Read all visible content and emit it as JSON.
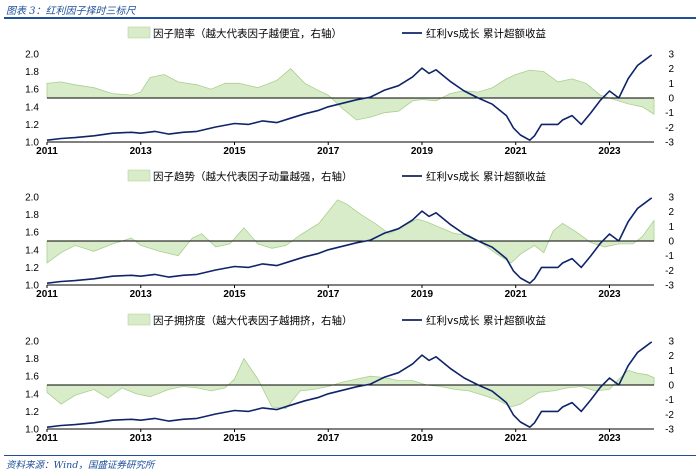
{
  "header": {
    "title": "图表 3：红利因子择时三标尺"
  },
  "footer": {
    "source": "资料来源：Wind，国盛证券研究所"
  },
  "colors": {
    "line": "#0f2469",
    "area_fill": "#d9ecc9",
    "area_stroke": "#a9d08e",
    "rule": "#1f4e9a"
  },
  "chart_data": [
    {
      "type": "line+area",
      "legend": [
        {
          "name": "因子赔率（越大代表因子越便宜，右轴）",
          "kind": "area"
        },
        {
          "name": "红利vs成长 累计超额收益",
          "kind": "line"
        }
      ],
      "left_axis": {
        "ticks": [
          "1.0",
          "1.2",
          "1.4",
          "1.6",
          "1.8",
          "2.0"
        ],
        "ylim": [
          1.0,
          2.0
        ]
      },
      "right_axis": {
        "ticks": [
          "-3",
          "-2",
          "-1",
          "0",
          "1",
          "2",
          "3"
        ],
        "ylim": [
          -3,
          3
        ]
      },
      "x_ticks": [
        "2011",
        "2013",
        "2015",
        "2017",
        "2019",
        "2021",
        "2023"
      ],
      "xlim": [
        2011.0,
        2023.95
      ],
      "line": [
        [
          2011.0,
          1.02
        ],
        [
          2011.3,
          1.04
        ],
        [
          2011.6,
          1.05
        ],
        [
          2012.0,
          1.07
        ],
        [
          2012.4,
          1.1
        ],
        [
          2012.8,
          1.11
        ],
        [
          2013.0,
          1.1
        ],
        [
          2013.3,
          1.12
        ],
        [
          2013.6,
          1.09
        ],
        [
          2013.9,
          1.11
        ],
        [
          2014.2,
          1.12
        ],
        [
          2014.6,
          1.17
        ],
        [
          2015.0,
          1.21
        ],
        [
          2015.3,
          1.2
        ],
        [
          2015.6,
          1.24
        ],
        [
          2015.9,
          1.22
        ],
        [
          2016.2,
          1.27
        ],
        [
          2016.5,
          1.32
        ],
        [
          2016.8,
          1.36
        ],
        [
          2017.0,
          1.4
        ],
        [
          2017.3,
          1.44
        ],
        [
          2017.6,
          1.48
        ],
        [
          2017.9,
          1.51
        ],
        [
          2018.2,
          1.59
        ],
        [
          2018.5,
          1.64
        ],
        [
          2018.8,
          1.74
        ],
        [
          2019.0,
          1.84
        ],
        [
          2019.15,
          1.78
        ],
        [
          2019.3,
          1.82
        ],
        [
          2019.6,
          1.69
        ],
        [
          2019.9,
          1.58
        ],
        [
          2020.2,
          1.5
        ],
        [
          2020.5,
          1.43
        ],
        [
          2020.8,
          1.3
        ],
        [
          2020.95,
          1.16
        ],
        [
          2021.1,
          1.08
        ],
        [
          2021.3,
          1.02
        ],
        [
          2021.4,
          1.07
        ],
        [
          2021.55,
          1.2
        ],
        [
          2021.7,
          1.2
        ],
        [
          2021.9,
          1.2
        ],
        [
          2022.0,
          1.25
        ],
        [
          2022.2,
          1.3
        ],
        [
          2022.4,
          1.2
        ],
        [
          2022.6,
          1.33
        ],
        [
          2022.8,
          1.47
        ],
        [
          2023.0,
          1.58
        ],
        [
          2023.2,
          1.5
        ],
        [
          2023.4,
          1.72
        ],
        [
          2023.6,
          1.87
        ],
        [
          2023.75,
          1.93
        ],
        [
          2023.9,
          1.99
        ]
      ],
      "area": [
        [
          2011.0,
          1.0
        ],
        [
          2011.3,
          1.1
        ],
        [
          2011.6,
          0.9
        ],
        [
          2012.0,
          0.7
        ],
        [
          2012.4,
          0.3
        ],
        [
          2012.8,
          0.2
        ],
        [
          2013.0,
          0.4
        ],
        [
          2013.2,
          1.4
        ],
        [
          2013.5,
          1.6
        ],
        [
          2013.8,
          1.1
        ],
        [
          2014.2,
          0.9
        ],
        [
          2014.5,
          0.6
        ],
        [
          2014.8,
          1.0
        ],
        [
          2015.1,
          1.0
        ],
        [
          2015.5,
          0.7
        ],
        [
          2015.9,
          1.2
        ],
        [
          2016.2,
          2.0
        ],
        [
          2016.5,
          1.0
        ],
        [
          2016.8,
          0.5
        ],
        [
          2017.0,
          0.2
        ],
        [
          2017.3,
          -0.7
        ],
        [
          2017.6,
          -1.5
        ],
        [
          2017.9,
          -1.3
        ],
        [
          2018.2,
          -1.0
        ],
        [
          2018.5,
          -0.9
        ],
        [
          2018.8,
          -0.2
        ],
        [
          2019.0,
          -0.1
        ],
        [
          2019.3,
          -0.2
        ],
        [
          2019.6,
          0.3
        ],
        [
          2019.9,
          0.5
        ],
        [
          2020.2,
          0.4
        ],
        [
          2020.5,
          0.7
        ],
        [
          2020.8,
          1.3
        ],
        [
          2021.0,
          1.6
        ],
        [
          2021.3,
          1.9
        ],
        [
          2021.6,
          1.8
        ],
        [
          2021.9,
          1.1
        ],
        [
          2022.2,
          1.3
        ],
        [
          2022.5,
          1.0
        ],
        [
          2022.8,
          0.2
        ],
        [
          2023.1,
          -0.1
        ],
        [
          2023.4,
          -0.4
        ],
        [
          2023.7,
          -0.6
        ],
        [
          2023.95,
          -1.1
        ]
      ]
    },
    {
      "type": "line+area",
      "legend": [
        {
          "name": "因子趋势（越大代表因子动量越强，右轴）",
          "kind": "area"
        },
        {
          "name": "红利vs成长 累计超额收益",
          "kind": "line"
        }
      ],
      "left_axis": {
        "ticks": [
          "1.0",
          "1.2",
          "1.4",
          "1.6",
          "1.8",
          "2.0"
        ],
        "ylim": [
          1.0,
          2.0
        ]
      },
      "right_axis": {
        "ticks": [
          "-3",
          "-2",
          "-1",
          "0",
          "1",
          "2",
          "3"
        ],
        "ylim": [
          -3,
          3
        ]
      },
      "x_ticks": [
        "2011",
        "2013",
        "2015",
        "2017",
        "2019",
        "2021",
        "2023"
      ],
      "xlim": [
        2011.0,
        2023.95
      ],
      "line": [
        [
          2011.0,
          1.02
        ],
        [
          2011.3,
          1.04
        ],
        [
          2011.6,
          1.05
        ],
        [
          2012.0,
          1.07
        ],
        [
          2012.4,
          1.1
        ],
        [
          2012.8,
          1.11
        ],
        [
          2013.0,
          1.1
        ],
        [
          2013.3,
          1.12
        ],
        [
          2013.6,
          1.09
        ],
        [
          2013.9,
          1.11
        ],
        [
          2014.2,
          1.12
        ],
        [
          2014.6,
          1.17
        ],
        [
          2015.0,
          1.21
        ],
        [
          2015.3,
          1.2
        ],
        [
          2015.6,
          1.24
        ],
        [
          2015.9,
          1.22
        ],
        [
          2016.2,
          1.27
        ],
        [
          2016.5,
          1.32
        ],
        [
          2016.8,
          1.36
        ],
        [
          2017.0,
          1.4
        ],
        [
          2017.3,
          1.44
        ],
        [
          2017.6,
          1.48
        ],
        [
          2017.9,
          1.51
        ],
        [
          2018.2,
          1.59
        ],
        [
          2018.5,
          1.64
        ],
        [
          2018.8,
          1.74
        ],
        [
          2019.0,
          1.84
        ],
        [
          2019.15,
          1.78
        ],
        [
          2019.3,
          1.82
        ],
        [
          2019.6,
          1.69
        ],
        [
          2019.9,
          1.58
        ],
        [
          2020.2,
          1.5
        ],
        [
          2020.5,
          1.43
        ],
        [
          2020.8,
          1.3
        ],
        [
          2020.95,
          1.16
        ],
        [
          2021.1,
          1.08
        ],
        [
          2021.3,
          1.02
        ],
        [
          2021.4,
          1.07
        ],
        [
          2021.55,
          1.2
        ],
        [
          2021.7,
          1.2
        ],
        [
          2021.9,
          1.2
        ],
        [
          2022.0,
          1.25
        ],
        [
          2022.2,
          1.3
        ],
        [
          2022.4,
          1.2
        ],
        [
          2022.6,
          1.33
        ],
        [
          2022.8,
          1.47
        ],
        [
          2023.0,
          1.58
        ],
        [
          2023.2,
          1.5
        ],
        [
          2023.4,
          1.72
        ],
        [
          2023.6,
          1.87
        ],
        [
          2023.75,
          1.93
        ],
        [
          2023.9,
          1.99
        ]
      ],
      "area": [
        [
          2011.0,
          -1.5
        ],
        [
          2011.3,
          -0.8
        ],
        [
          2011.6,
          -0.3
        ],
        [
          2012.0,
          -0.7
        ],
        [
          2012.4,
          -0.2
        ],
        [
          2012.8,
          0.2
        ],
        [
          2013.0,
          -0.3
        ],
        [
          2013.4,
          -0.7
        ],
        [
          2013.8,
          -1.0
        ],
        [
          2014.1,
          0.2
        ],
        [
          2014.3,
          0.5
        ],
        [
          2014.6,
          -0.4
        ],
        [
          2014.9,
          -0.2
        ],
        [
          2015.2,
          0.9
        ],
        [
          2015.5,
          -0.2
        ],
        [
          2015.8,
          -0.5
        ],
        [
          2016.1,
          -0.3
        ],
        [
          2016.4,
          0.4
        ],
        [
          2016.8,
          1.2
        ],
        [
          2017.0,
          2.0
        ],
        [
          2017.2,
          2.8
        ],
        [
          2017.4,
          2.5
        ],
        [
          2017.7,
          1.8
        ],
        [
          2018.0,
          1.2
        ],
        [
          2018.3,
          0.5
        ],
        [
          2018.6,
          1.0
        ],
        [
          2018.9,
          1.5
        ],
        [
          2019.1,
          1.3
        ],
        [
          2019.4,
          0.9
        ],
        [
          2019.7,
          0.5
        ],
        [
          2020.0,
          0.4
        ],
        [
          2020.3,
          -0.2
        ],
        [
          2020.6,
          -0.9
        ],
        [
          2020.9,
          -1.5
        ],
        [
          2021.1,
          -0.9
        ],
        [
          2021.4,
          -0.3
        ],
        [
          2021.6,
          -0.8
        ],
        [
          2021.8,
          0.7
        ],
        [
          2022.0,
          1.2
        ],
        [
          2022.3,
          0.6
        ],
        [
          2022.6,
          -0.1
        ],
        [
          2022.9,
          -0.4
        ],
        [
          2023.2,
          -0.2
        ],
        [
          2023.5,
          -0.2
        ],
        [
          2023.7,
          0.3
        ],
        [
          2023.95,
          1.4
        ]
      ]
    },
    {
      "type": "line+area",
      "legend": [
        {
          "name": "因子拥挤度（越大代表因子越拥挤，右轴）",
          "kind": "area"
        },
        {
          "name": "红利vs成长 累计超额收益",
          "kind": "line"
        }
      ],
      "left_axis": {
        "ticks": [
          "1.0",
          "1.2",
          "1.4",
          "1.6",
          "1.8",
          "2.0"
        ],
        "ylim": [
          1.0,
          2.0
        ]
      },
      "right_axis": {
        "ticks": [
          "-3",
          "-2",
          "-1",
          "0",
          "1",
          "2",
          "3"
        ],
        "ylim": [
          -3,
          3
        ]
      },
      "x_ticks": [
        "2011",
        "2013",
        "2015",
        "2017",
        "2019",
        "2021",
        "2023"
      ],
      "xlim": [
        2011.0,
        2023.95
      ],
      "line": [
        [
          2011.0,
          1.02
        ],
        [
          2011.3,
          1.04
        ],
        [
          2011.6,
          1.05
        ],
        [
          2012.0,
          1.07
        ],
        [
          2012.4,
          1.1
        ],
        [
          2012.8,
          1.11
        ],
        [
          2013.0,
          1.1
        ],
        [
          2013.3,
          1.12
        ],
        [
          2013.6,
          1.09
        ],
        [
          2013.9,
          1.11
        ],
        [
          2014.2,
          1.12
        ],
        [
          2014.6,
          1.17
        ],
        [
          2015.0,
          1.21
        ],
        [
          2015.3,
          1.2
        ],
        [
          2015.6,
          1.24
        ],
        [
          2015.9,
          1.22
        ],
        [
          2016.2,
          1.27
        ],
        [
          2016.5,
          1.32
        ],
        [
          2016.8,
          1.36
        ],
        [
          2017.0,
          1.4
        ],
        [
          2017.3,
          1.44
        ],
        [
          2017.6,
          1.48
        ],
        [
          2017.9,
          1.51
        ],
        [
          2018.2,
          1.59
        ],
        [
          2018.5,
          1.64
        ],
        [
          2018.8,
          1.74
        ],
        [
          2019.0,
          1.84
        ],
        [
          2019.15,
          1.78
        ],
        [
          2019.3,
          1.82
        ],
        [
          2019.6,
          1.69
        ],
        [
          2019.9,
          1.58
        ],
        [
          2020.2,
          1.5
        ],
        [
          2020.5,
          1.43
        ],
        [
          2020.8,
          1.3
        ],
        [
          2020.95,
          1.16
        ],
        [
          2021.1,
          1.08
        ],
        [
          2021.3,
          1.02
        ],
        [
          2021.4,
          1.07
        ],
        [
          2021.55,
          1.2
        ],
        [
          2021.7,
          1.2
        ],
        [
          2021.9,
          1.2
        ],
        [
          2022.0,
          1.25
        ],
        [
          2022.2,
          1.3
        ],
        [
          2022.4,
          1.2
        ],
        [
          2022.6,
          1.33
        ],
        [
          2022.8,
          1.47
        ],
        [
          2023.0,
          1.58
        ],
        [
          2023.2,
          1.5
        ],
        [
          2023.4,
          1.72
        ],
        [
          2023.6,
          1.87
        ],
        [
          2023.75,
          1.93
        ],
        [
          2023.9,
          1.99
        ]
      ],
      "area": [
        [
          2011.0,
          -0.5
        ],
        [
          2011.3,
          -1.3
        ],
        [
          2011.6,
          -0.7
        ],
        [
          2012.0,
          -0.3
        ],
        [
          2012.3,
          -0.9
        ],
        [
          2012.6,
          -0.2
        ],
        [
          2012.9,
          -0.6
        ],
        [
          2013.2,
          -0.8
        ],
        [
          2013.6,
          -0.3
        ],
        [
          2013.9,
          -0.1
        ],
        [
          2014.2,
          -0.2
        ],
        [
          2014.5,
          -0.4
        ],
        [
          2014.8,
          -0.2
        ],
        [
          2015.0,
          0.4
        ],
        [
          2015.2,
          1.8
        ],
        [
          2015.5,
          0.4
        ],
        [
          2015.8,
          -1.5
        ],
        [
          2016.1,
          -1.6
        ],
        [
          2016.4,
          -0.4
        ],
        [
          2016.7,
          -0.3
        ],
        [
          2017.0,
          -0.1
        ],
        [
          2017.3,
          0.2
        ],
        [
          2017.6,
          0.4
        ],
        [
          2017.9,
          0.6
        ],
        [
          2018.2,
          0.5
        ],
        [
          2018.5,
          0.3
        ],
        [
          2018.8,
          0.3
        ],
        [
          2019.1,
          0.0
        ],
        [
          2019.4,
          -0.1
        ],
        [
          2019.7,
          -0.3
        ],
        [
          2020.0,
          -0.4
        ],
        [
          2020.3,
          -0.7
        ],
        [
          2020.6,
          -1.0
        ],
        [
          2020.9,
          -1.5
        ],
        [
          2021.1,
          -1.3
        ],
        [
          2021.3,
          -0.9
        ],
        [
          2021.5,
          -0.5
        ],
        [
          2021.8,
          -0.4
        ],
        [
          2022.1,
          -0.2
        ],
        [
          2022.4,
          -0.1
        ],
        [
          2022.7,
          -0.4
        ],
        [
          2023.0,
          -0.3
        ],
        [
          2023.2,
          0.4
        ],
        [
          2023.4,
          1.0
        ],
        [
          2023.6,
          0.8
        ],
        [
          2023.8,
          0.7
        ],
        [
          2023.95,
          0.5
        ]
      ]
    }
  ]
}
